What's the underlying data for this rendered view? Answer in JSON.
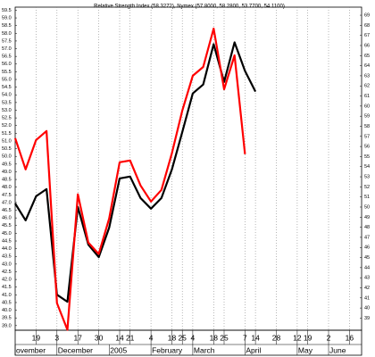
{
  "chart_data": {
    "type": "line",
    "title": "Relative Strength Index (58.3272), Nymex (57.8000, 58.2800, 53.7700, 54.1100)",
    "categories": [
      null,
      null,
      "19",
      null,
      "3",
      null,
      "17",
      null,
      "30",
      null,
      "14",
      "21",
      null,
      "4",
      null,
      "18",
      "25",
      "4",
      null,
      "18",
      "25",
      null,
      "7",
      "14",
      null,
      "28",
      null,
      "12",
      "19",
      null,
      "2",
      null,
      "16",
      null
    ],
    "months": [
      "ovember",
      null,
      null,
      null,
      "December",
      null,
      null,
      null,
      null,
      "2005",
      null,
      null,
      null,
      "February",
      null,
      null,
      null,
      "March",
      null,
      null,
      null,
      null,
      "April",
      null,
      null,
      null,
      null,
      "May",
      null,
      null,
      "June",
      null,
      null,
      null
    ],
    "series": [
      {
        "name": "Nymex",
        "color": "#000000",
        "axis": "y",
        "values": [
          46.94,
          45.84,
          47.41,
          47.87,
          41.01,
          40.55,
          46.71,
          44.27,
          43.45,
          45.37,
          48.57,
          48.69,
          47.29,
          46.6,
          47.29,
          49.15,
          51.59,
          54.09,
          54.67,
          57.29,
          54.84,
          57.41,
          55.55,
          54.21,
          null,
          null,
          null,
          null,
          null,
          null,
          null,
          null,
          null,
          null
        ]
      },
      {
        "name": "Relative Strength Index",
        "color": "#ff0000",
        "axis": "y2",
        "values": [
          56.82,
          53.73,
          56.64,
          57.53,
          40.49,
          37.84,
          51.26,
          46.49,
          45.35,
          48.88,
          54.44,
          54.61,
          52.14,
          50.55,
          51.7,
          55.32,
          59.56,
          63.0,
          63.88,
          67.68,
          61.67,
          65.03,
          55.23,
          null,
          null,
          null,
          null,
          null,
          null,
          null,
          null,
          null,
          null,
          null
        ]
      }
    ],
    "ylim": [
      38.7,
      59.7
    ],
    "yticks": [
      {
        "value": 39,
        "label": "39.0"
      },
      39.5,
      {
        "value": 40,
        "label": "40.0"
      },
      40.5,
      {
        "value": 41,
        "label": "41.0"
      },
      41.5,
      {
        "value": 42,
        "label": "42.0"
      },
      42.5,
      {
        "value": 43,
        "label": "43.0"
      },
      43.5,
      {
        "value": 44,
        "label": "44.0"
      },
      44.5,
      {
        "value": 45,
        "label": "45.0"
      },
      45.5,
      {
        "value": 46,
        "label": "46.0"
      },
      46.5,
      {
        "value": 47,
        "label": "47.0"
      },
      47.5,
      {
        "value": 48,
        "label": "48.0"
      },
      48.5,
      {
        "value": 49,
        "label": "49.0"
      },
      49.5,
      {
        "value": 50,
        "label": "50.0"
      },
      50.5,
      {
        "value": 51,
        "label": "51.0"
      },
      51.5,
      {
        "value": 52,
        "label": "52.0"
      },
      52.5,
      {
        "value": 53,
        "label": "53.0"
      },
      53.5,
      {
        "value": 54,
        "label": "54.0"
      },
      54.5,
      {
        "value": 55,
        "label": "55.0"
      },
      55.5,
      {
        "value": 56,
        "label": "56.0"
      },
      56.5,
      {
        "value": 57,
        "label": "57.0"
      },
      57.5,
      {
        "value": 58,
        "label": "58.0"
      },
      58.5,
      {
        "value": 59,
        "label": "59.0"
      },
      59.5
    ],
    "y2lim": [
      37.8,
      69.8
    ],
    "y2ticks": [
      39,
      40,
      41,
      42,
      43,
      44,
      45,
      46,
      47,
      48,
      49,
      50,
      51,
      52,
      53,
      54,
      55,
      56,
      57,
      58,
      59,
      60,
      61,
      62,
      63,
      64,
      65,
      66,
      67,
      68,
      69
    ],
    "grid": true
  }
}
